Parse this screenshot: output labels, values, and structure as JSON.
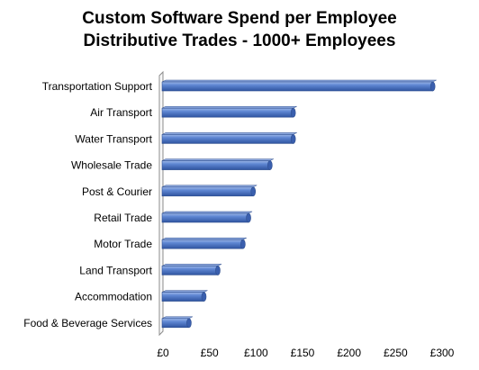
{
  "chart_data": {
    "type": "bar",
    "orientation": "horizontal",
    "title": [
      "Custom Software Spend per Employee",
      "Distributive Trades - 1000+ Employees"
    ],
    "xlabel": "",
    "ylabel": "",
    "categories": [
      "Transportation Support",
      "Air Transport",
      "Water Transport",
      "Wholesale Trade",
      "Post & Courier",
      "Retail Trade",
      "Motor Trade",
      "Land Transport",
      "Accommodation",
      "Food & Beverage Services"
    ],
    "values": [
      290,
      140,
      140,
      115,
      97,
      92,
      86,
      59,
      44,
      28
    ],
    "xlim": [
      0,
      300
    ],
    "xticks": [
      0,
      50,
      100,
      150,
      200,
      250,
      300
    ],
    "xtick_labels": [
      "£0",
      "£50",
      "£100",
      "£150",
      "£200",
      "£250",
      "£300"
    ],
    "grid": false,
    "legend": "none",
    "bar_color": "#4A72C4",
    "bar_edge_color": "#2F4F8F",
    "bar_highlight_color": "#9DB7E8"
  }
}
